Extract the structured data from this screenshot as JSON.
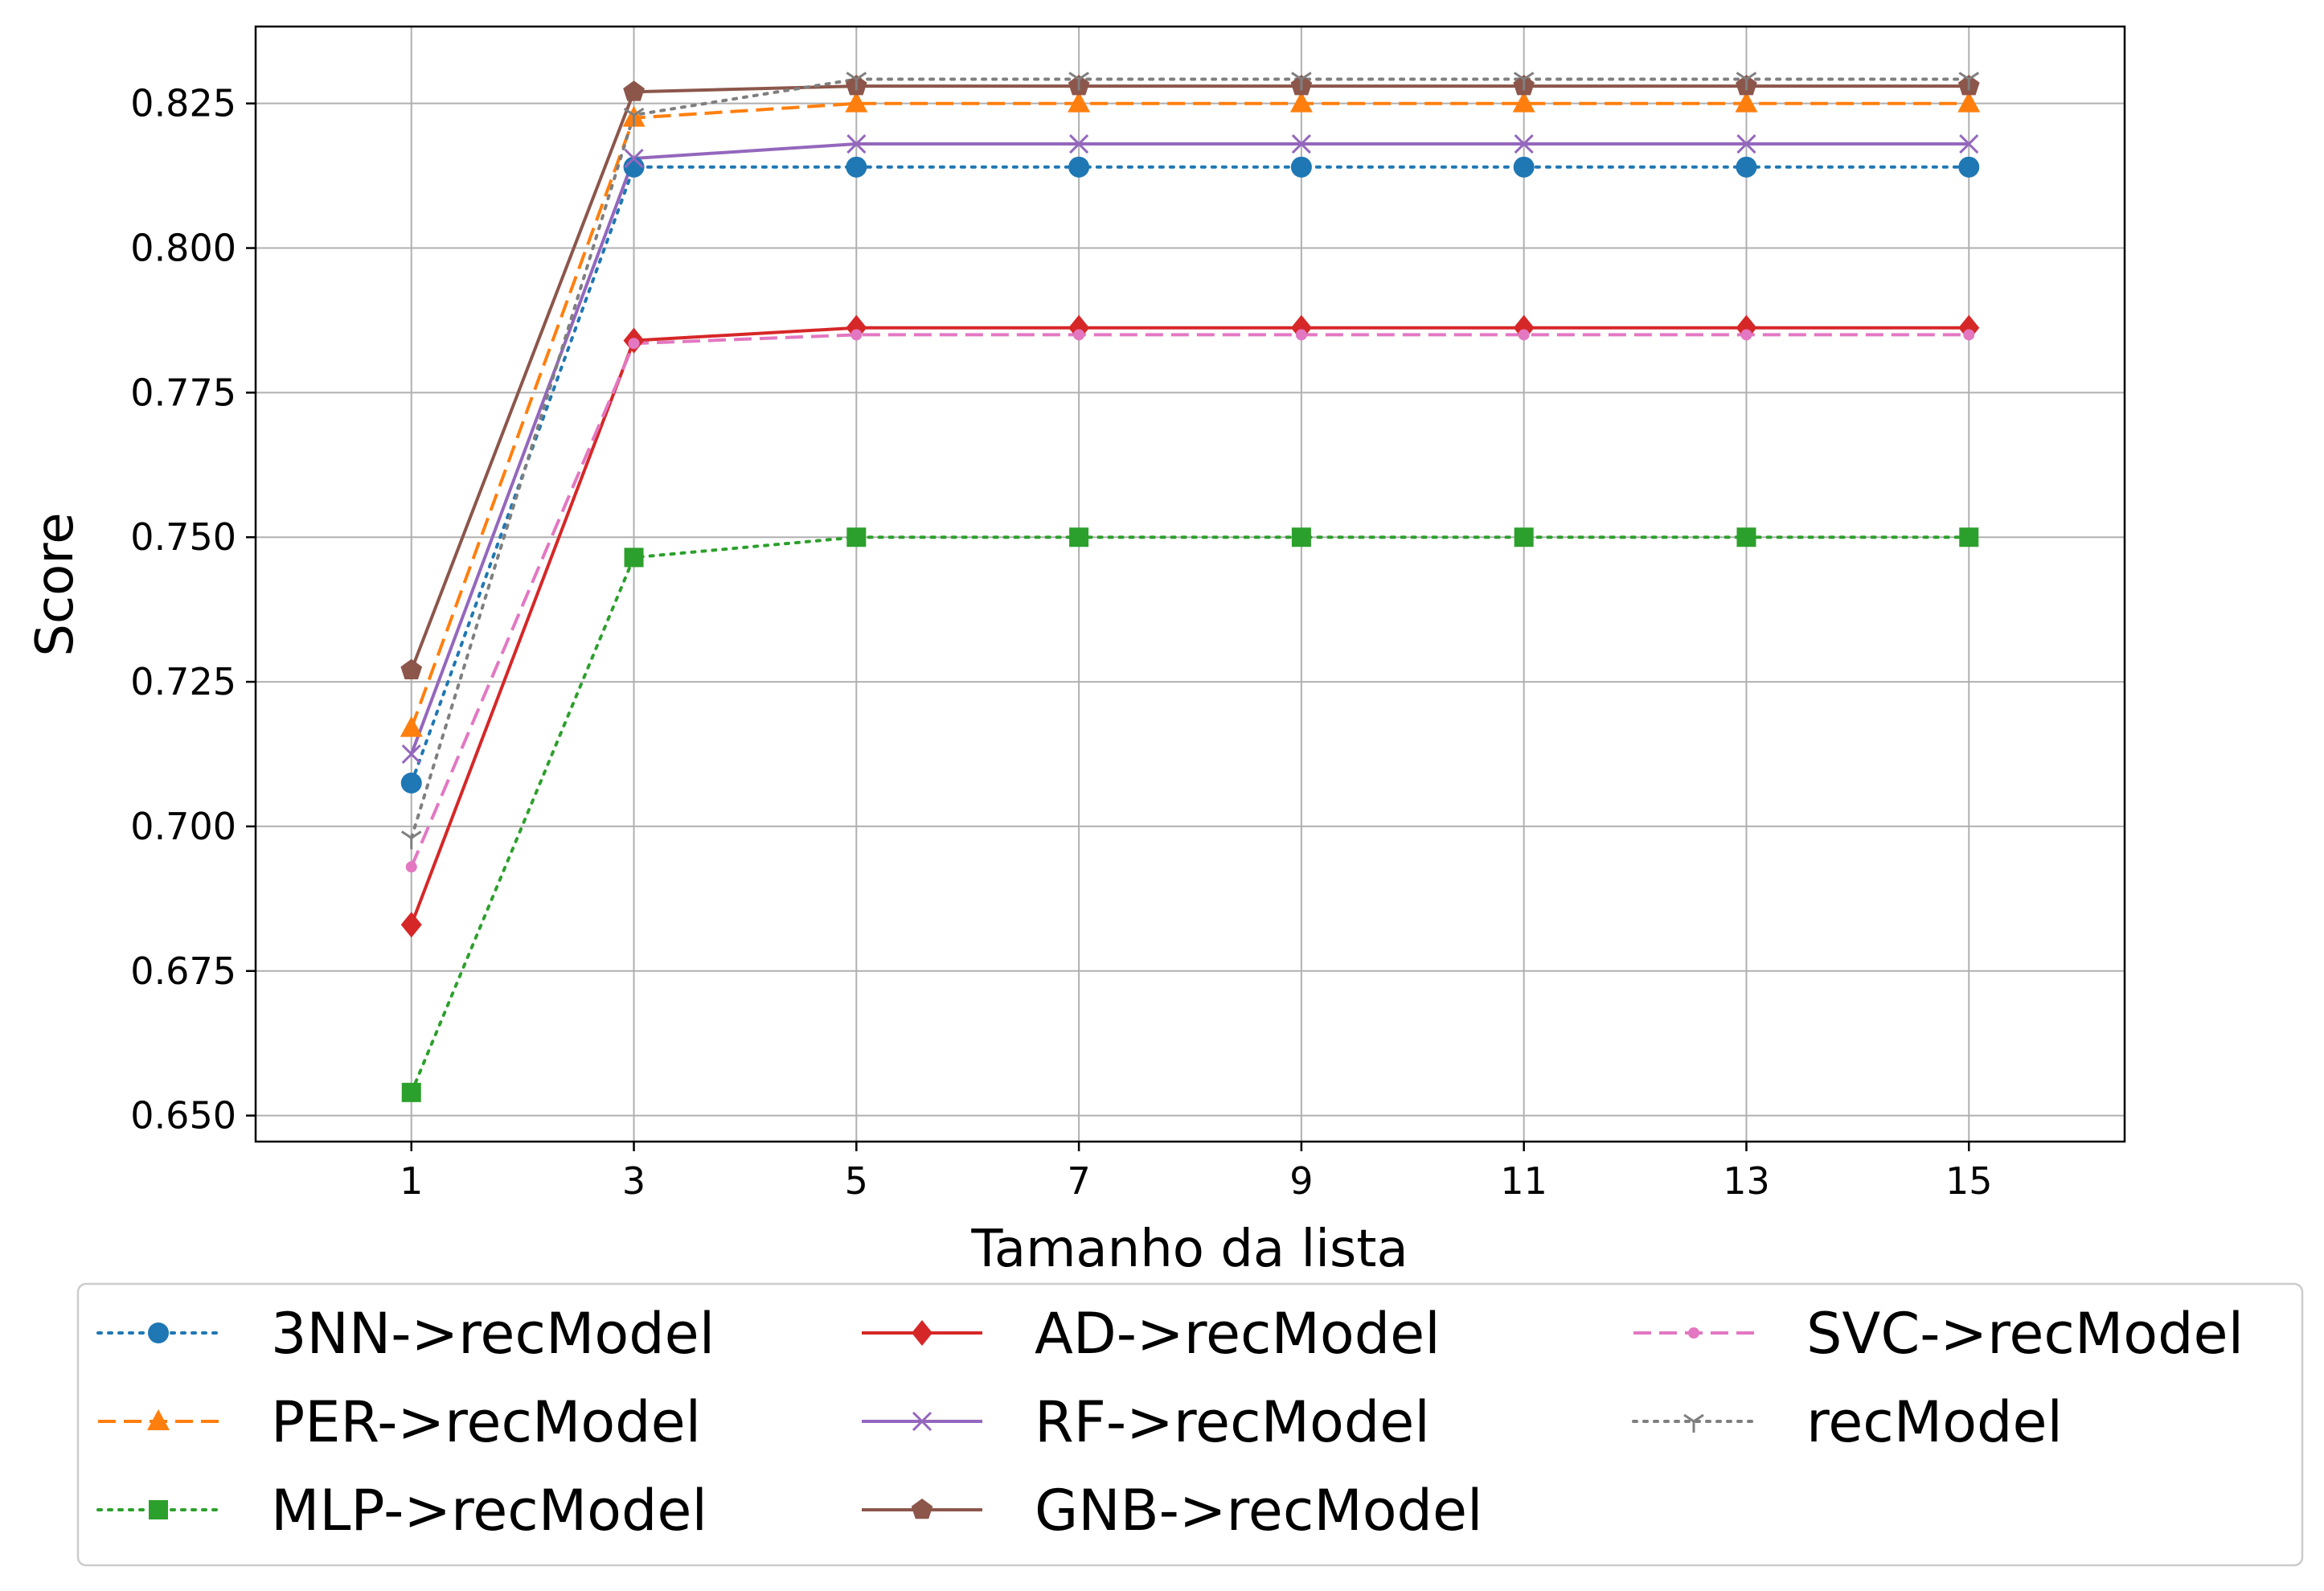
{
  "chart_data": {
    "type": "line",
    "xlabel": "Tamanho da lista",
    "ylabel": "Score",
    "x": [
      1,
      3,
      5,
      7,
      9,
      11,
      13,
      15
    ],
    "xlim": [
      -0.4,
      16.4
    ],
    "ylim": [
      0.6455,
      0.8383
    ],
    "xticks": [
      "1",
      "3",
      "5",
      "7",
      "9",
      "11",
      "13",
      "15"
    ],
    "yticks": [
      "0.650",
      "0.675",
      "0.700",
      "0.725",
      "0.750",
      "0.775",
      "0.800",
      "0.825"
    ],
    "ytick_values": [
      0.65,
      0.675,
      0.7,
      0.725,
      0.75,
      0.775,
      0.8,
      0.825
    ],
    "grid": true,
    "legend_position": "bottom",
    "series": [
      {
        "name": "3NN->recModel",
        "color": "#1f77b4",
        "linestyle": "dotted",
        "marker": "circle",
        "values": [
          0.7075,
          0.814,
          0.814,
          0.814,
          0.814,
          0.814,
          0.814,
          0.814
        ]
      },
      {
        "name": "PER->recModel",
        "color": "#ff7f0e",
        "linestyle": "dashed",
        "marker": "triangle",
        "values": [
          0.717,
          0.8225,
          0.825,
          0.825,
          0.825,
          0.825,
          0.825,
          0.825
        ]
      },
      {
        "name": "MLP->recModel",
        "color": "#2ca02c",
        "linestyle": "dotted",
        "marker": "square",
        "values": [
          0.654,
          0.7465,
          0.75,
          0.75,
          0.75,
          0.75,
          0.75,
          0.75
        ]
      },
      {
        "name": "AD->recModel",
        "color": "#d62728",
        "linestyle": "solid",
        "marker": "diamond",
        "values": [
          0.683,
          0.784,
          0.7862,
          0.7862,
          0.7862,
          0.7862,
          0.7862,
          0.7862
        ]
      },
      {
        "name": "RF->recModel",
        "color": "#9467bd",
        "linestyle": "solid",
        "marker": "x",
        "values": [
          0.7125,
          0.8155,
          0.818,
          0.818,
          0.818,
          0.818,
          0.818,
          0.818
        ]
      },
      {
        "name": "GNB->recModel",
        "color": "#8c564b",
        "linestyle": "solid",
        "marker": "pentagon",
        "values": [
          0.727,
          0.827,
          0.828,
          0.828,
          0.828,
          0.828,
          0.828,
          0.828
        ]
      },
      {
        "name": "SVC->recModel",
        "color": "#e377c2",
        "linestyle": "dashed",
        "marker": "point",
        "values": [
          0.693,
          0.7835,
          0.785,
          0.785,
          0.785,
          0.785,
          0.785,
          0.785
        ]
      },
      {
        "name": "recModel",
        "color": "#7f7f7f",
        "linestyle": "dotted",
        "marker": "tri_down",
        "values": [
          0.698,
          0.823,
          0.8292,
          0.8292,
          0.8292,
          0.8292,
          0.8292,
          0.8292
        ]
      }
    ]
  }
}
